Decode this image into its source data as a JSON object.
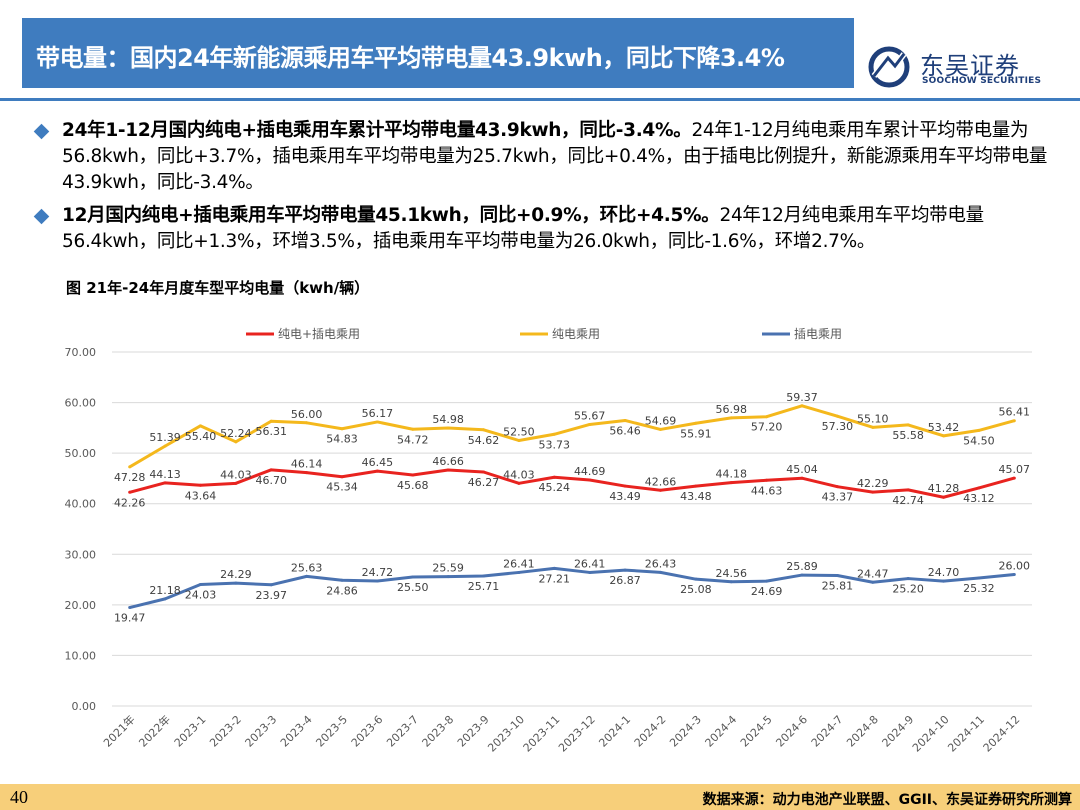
{
  "header": {
    "title": "带电量：国内24年新能源乘用车平均带电量43.9kwh，同比下降3.4%",
    "brand_name": "东吴证券",
    "brand_sub": "SOOCHOW SECURITIES",
    "brand_color": "#1f3f7a",
    "accent_color": "#3f7cbf"
  },
  "bullets": [
    {
      "bold": "24年1-12月国内纯电+插电乘用车累计平均带电量43.9kwh，同比-3.4%。",
      "normal": "24年1-12月纯电乘用车累计平均带电量为56.8kwh，同比+3.7%，插电乘用车平均带电量为25.7kwh，同比+0.4%，由于插电比例提升，新能源乘用车平均带电量43.9kwh，同比-3.4%。"
    },
    {
      "bold": "12月国内纯电+插电乘用车平均带电量45.1kwh，同比+0.9%，环比+4.5%。",
      "normal": "24年12月纯电乘用车平均带电量56.4kwh，同比+1.3%，环增3.5%，插电乘用车平均带电量为26.0kwh，同比-1.6%，环增2.7%。"
    }
  ],
  "figure_title": "图  21年-24年月度车型平均电量（kwh/辆）",
  "footer": {
    "page": "40",
    "source": "数据来源：动力电池产业联盟、GGII、东吴证券研究所测算"
  },
  "chart_data": {
    "type": "line",
    "categories": [
      "2021年",
      "2022年",
      "2023-1",
      "2023-2",
      "2023-3",
      "2023-4",
      "2023-5",
      "2023-6",
      "2023-7",
      "2023-8",
      "2023-9",
      "2023-10",
      "2023-11",
      "2023-12",
      "2024-1",
      "2024-2",
      "2024-3",
      "2024-4",
      "2024-5",
      "2024-6",
      "2024-7",
      "2024-8",
      "2024-9",
      "2024-10",
      "2024-11",
      "2024-12"
    ],
    "series": [
      {
        "name": "纯电+插电乘用",
        "color": "#e8231f",
        "values": [
          42.26,
          44.13,
          43.64,
          44.03,
          46.7,
          46.14,
          45.34,
          46.45,
          45.68,
          46.66,
          46.27,
          44.03,
          45.24,
          44.69,
          43.49,
          42.66,
          43.48,
          44.18,
          44.63,
          45.04,
          43.37,
          42.29,
          42.74,
          41.28,
          43.12,
          45.07
        ]
      },
      {
        "name": "纯电乘用",
        "color": "#f4b81c",
        "values": [
          47.28,
          51.39,
          55.4,
          52.24,
          56.31,
          56.0,
          54.83,
          56.17,
          54.72,
          54.98,
          54.62,
          52.5,
          53.73,
          55.67,
          56.46,
          54.69,
          55.91,
          56.98,
          57.2,
          59.37,
          57.3,
          55.1,
          55.58,
          53.42,
          54.5,
          56.41
        ]
      },
      {
        "name": "插电乘用",
        "color": "#4a72b0",
        "values": [
          19.47,
          21.18,
          24.03,
          24.29,
          23.97,
          25.63,
          24.86,
          24.72,
          25.5,
          25.59,
          25.71,
          26.41,
          27.21,
          26.41,
          26.87,
          26.43,
          25.08,
          24.56,
          24.69,
          25.89,
          25.81,
          24.47,
          25.2,
          24.7,
          25.32,
          26.0
        ]
      }
    ],
    "ylim": [
      0,
      70
    ],
    "yticks": [
      "0.00",
      "10.00",
      "20.00",
      "30.00",
      "40.00",
      "50.00",
      "60.00",
      "70.00"
    ],
    "grid": true,
    "legend_position": "top"
  }
}
